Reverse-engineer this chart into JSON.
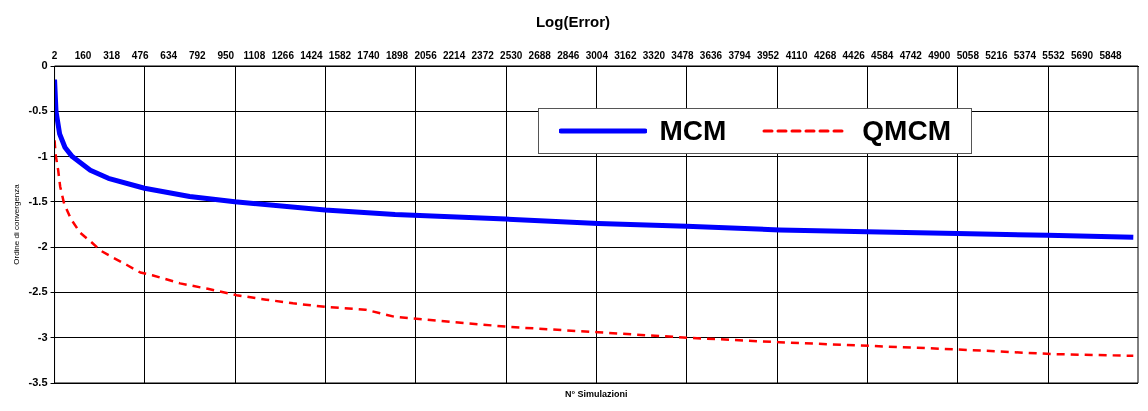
{
  "chart_data": {
    "type": "line",
    "title": "Log(Error)",
    "xlabel": "N° Simulazioni",
    "ylabel": "Ordine di convergenza",
    "xlim": [
      2,
      6000
    ],
    "ylim": [
      -3.5,
      0
    ],
    "xticks": [
      2,
      160,
      318,
      476,
      634,
      792,
      950,
      1108,
      1266,
      1424,
      1582,
      1740,
      1898,
      2056,
      2214,
      2372,
      2530,
      2688,
      2846,
      3004,
      3162,
      3320,
      3478,
      3636,
      3794,
      3952,
      4110,
      4268,
      4426,
      4584,
      4742,
      4900,
      5058,
      5216,
      5374,
      5532,
      5690,
      5848,
      {
        "value": 502,
        "label": null
      },
      {
        "value": 1002,
        "label": null
      },
      {
        "value": 1502,
        "label": null
      },
      {
        "value": 2002,
        "label": null
      },
      {
        "value": 2502,
        "label": null
      },
      {
        "value": 3002,
        "label": null
      },
      {
        "value": 3502,
        "label": null
      },
      {
        "value": 4002,
        "label": null
      },
      {
        "value": 4502,
        "label": null
      },
      {
        "value": 5002,
        "label": null
      },
      {
        "value": 5502,
        "label": null
      }
    ],
    "yticks": [
      0,
      -0.5,
      -1,
      -1.5,
      -2,
      -2.5,
      -3,
      -3.5
    ],
    "grid": true,
    "legend": "top right",
    "marker": "none",
    "series": [
      {
        "name": "MCM",
        "color": "#0000ff",
        "line_style": "solid",
        "x": [
          2,
          10,
          30,
          60,
          100,
          200,
          300,
          500,
          750,
          1000,
          1500,
          1887,
          2500,
          3012,
          3500,
          4015,
          4500,
          5000,
          5500,
          5974
        ],
        "values": [
          -0.15,
          -0.5,
          -0.75,
          -0.9,
          -1.0,
          -1.15,
          -1.24,
          -1.35,
          -1.44,
          -1.5,
          -1.59,
          -1.64,
          -1.69,
          -1.74,
          -1.77,
          -1.81,
          -1.83,
          -1.85,
          -1.87,
          -1.89
        ]
      },
      {
        "name": "QMCM",
        "color": "#ff0000",
        "line_style": "dashed",
        "x": [
          2,
          8,
          22,
          33,
          55,
          93,
          143,
          203,
          258,
          330,
          405,
          477,
          543,
          697,
          850,
          1009,
          1174,
          1322,
          1503,
          1722,
          1887,
          2513,
          3012,
          3505,
          4015,
          4515,
          5008,
          5518,
          5974
        ],
        "values": [
          -0.82,
          -0.98,
          -1.15,
          -1.33,
          -1.52,
          -1.69,
          -1.84,
          -1.94,
          -2.04,
          -2.12,
          -2.2,
          -2.28,
          -2.31,
          -2.4,
          -2.46,
          -2.53,
          -2.58,
          -2.62,
          -2.66,
          -2.69,
          -2.77,
          -2.88,
          -2.94,
          -3.0,
          -3.05,
          -3.09,
          -3.13,
          -3.18,
          -3.2
        ]
      }
    ]
  }
}
